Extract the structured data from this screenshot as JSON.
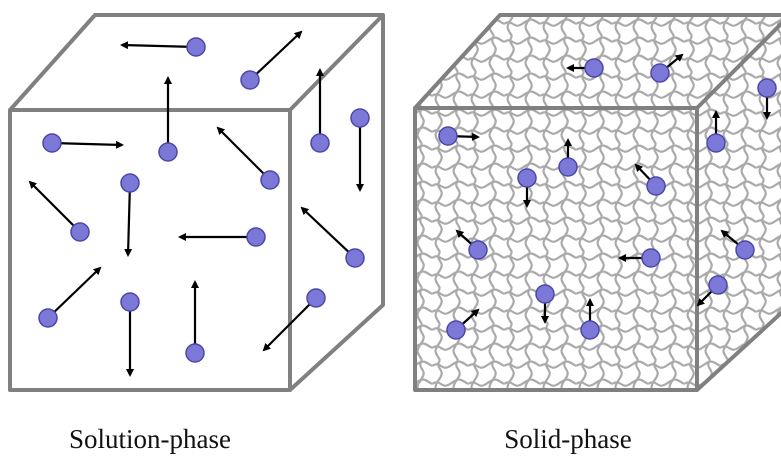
{
  "panels": [
    {
      "label": "Solution-phase"
    },
    {
      "label": "Solid-phase"
    }
  ]
}
